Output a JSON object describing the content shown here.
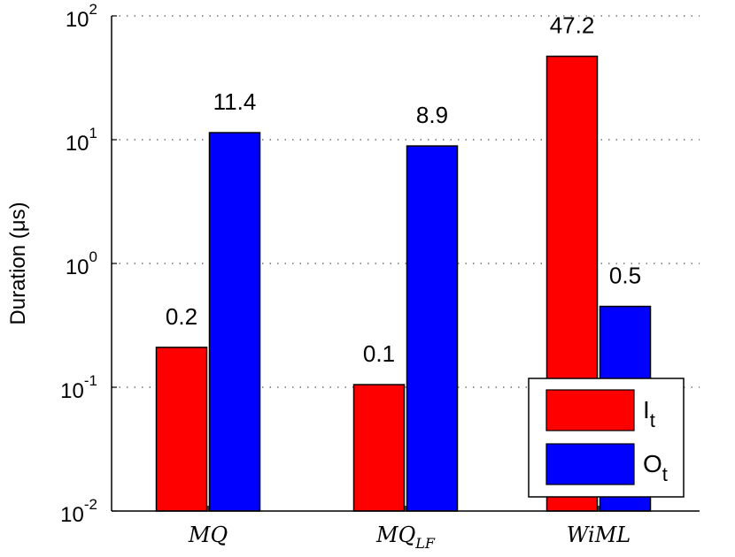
{
  "chart_data": {
    "type": "bar",
    "title": "",
    "xlabel": "",
    "ylabel": "Duration (μs)",
    "yscale": "log",
    "ylim": [
      0.01,
      100
    ],
    "grid": "dotted-horizontal",
    "legend_position": "bottom-right",
    "categories": [
      "MQ",
      "MQ_LF",
      "WiML"
    ],
    "category_labels": [
      {
        "base": "MQ",
        "sub": ""
      },
      {
        "base": "MQ",
        "sub": "LF"
      },
      {
        "base": "WiML",
        "sub": ""
      }
    ],
    "y_ticks": [
      {
        "base": "10",
        "exp": "-2",
        "value": 0.01
      },
      {
        "base": "10",
        "exp": "-1",
        "value": 0.1
      },
      {
        "base": "10",
        "exp": "0",
        "value": 1
      },
      {
        "base": "10",
        "exp": "1",
        "value": 10
      },
      {
        "base": "10",
        "exp": "2",
        "value": 100
      }
    ],
    "series": [
      {
        "name_base": "I",
        "name_sub": "t",
        "color": "#ff0000",
        "values": [
          0.21,
          0.105,
          47.2
        ],
        "labels": [
          "0.2",
          "0.1",
          "47.2"
        ]
      },
      {
        "name_base": "O",
        "name_sub": "t",
        "color": "#0000ff",
        "values": [
          11.4,
          8.9,
          0.45
        ],
        "labels": [
          "11.4",
          "8.9",
          "0.5"
        ]
      }
    ]
  }
}
